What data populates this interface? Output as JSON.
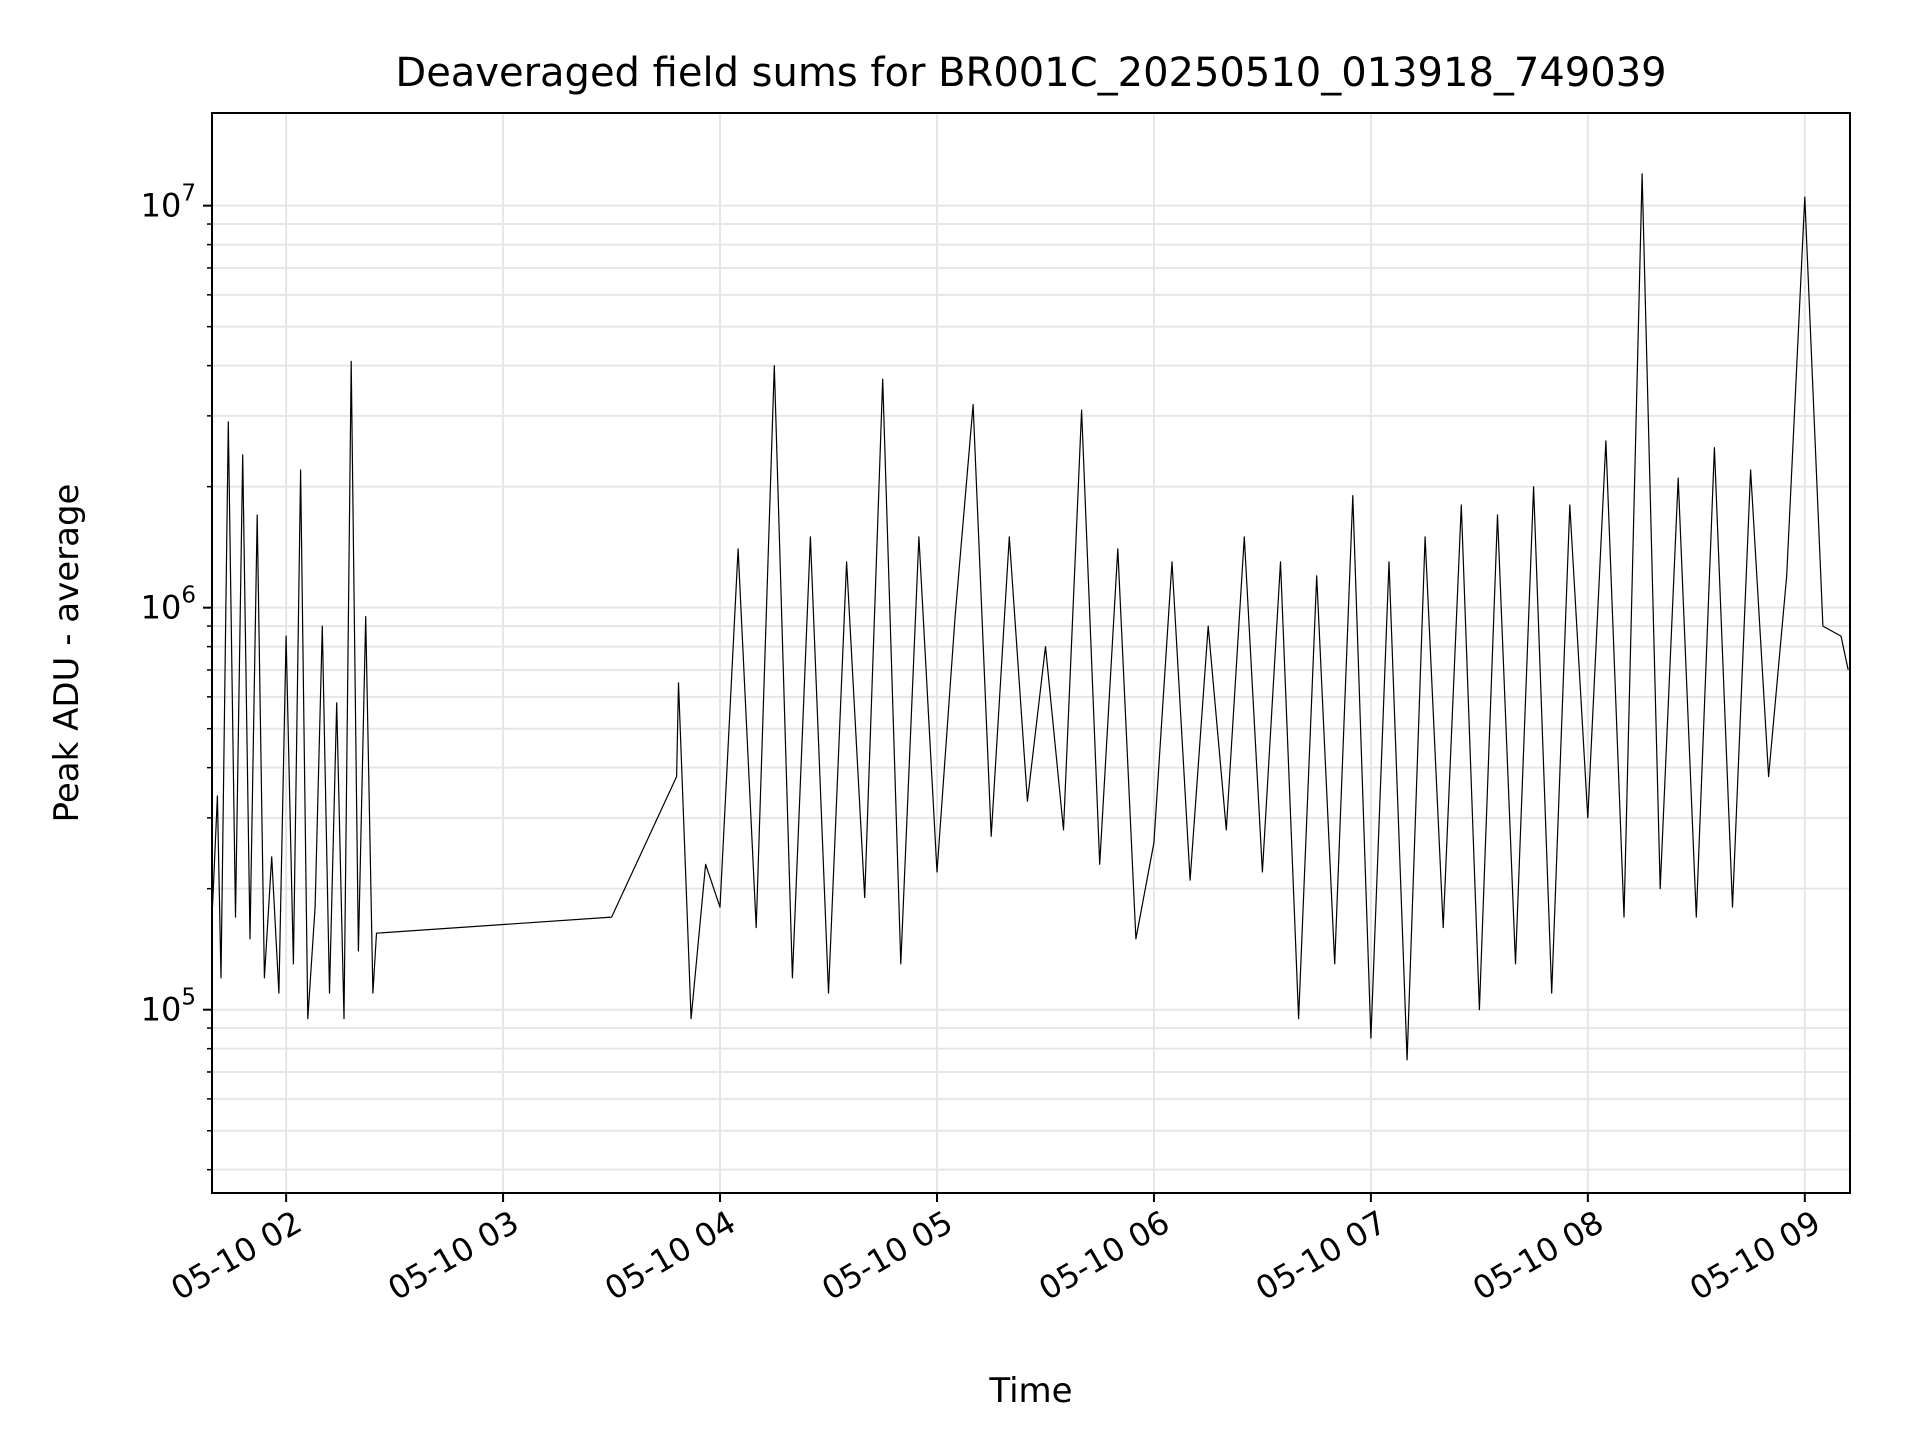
{
  "chart_data": {
    "type": "line",
    "title": "Deaveraged field sums for BR001C_20250510_013918_749039",
    "xlabel": "Time",
    "ylabel": "Peak ADU - average",
    "y_scale": "log",
    "ylim": [
      35000,
      17000000
    ],
    "xlim": [
      "2025-05-10 01:39:30",
      "2025-05-10 09:12:30"
    ],
    "x_ticks": [
      "05-10 02",
      "05-10 03",
      "05-10 04",
      "05-10 05",
      "05-10 06",
      "05-10 07",
      "05-10 08",
      "05-10 09"
    ],
    "x_tick_values": [
      "2025-05-10 02:00",
      "2025-05-10 03:00",
      "2025-05-10 04:00",
      "2025-05-10 05:00",
      "2025-05-10 06:00",
      "2025-05-10 07:00",
      "2025-05-10 08:00",
      "2025-05-10 09:00"
    ],
    "y_ticks": [
      {
        "base": "10",
        "exp": "5",
        "value": 100000
      },
      {
        "base": "10",
        "exp": "6",
        "value": 1000000
      },
      {
        "base": "10",
        "exp": "7",
        "value": 10000000
      }
    ],
    "grid": true,
    "line_color": "#000000",
    "series": [
      {
        "x": [
          "2025-05-10 01:39:39",
          "2025-05-10 01:41:00",
          "2025-05-10 01:42:00",
          "2025-05-10 01:44:00",
          "2025-05-10 01:46:00",
          "2025-05-10 01:48:00",
          "2025-05-10 01:50:00",
          "2025-05-10 01:52:00",
          "2025-05-10 01:54:00",
          "2025-05-10 01:56:00",
          "2025-05-10 01:58:00",
          "2025-05-10 02:00:00",
          "2025-05-10 02:02:00",
          "2025-05-10 02:04:00",
          "2025-05-10 02:06:00",
          "2025-05-10 02:08:00",
          "2025-05-10 02:10:00",
          "2025-05-10 02:12:00",
          "2025-05-10 02:14:00",
          "2025-05-10 02:16:00",
          "2025-05-10 02:18:00",
          "2025-05-10 02:20:00",
          "2025-05-10 02:22:00",
          "2025-05-10 02:24:00",
          "2025-05-10 02:25:00",
          "2025-05-10 03:30:00",
          "2025-05-10 03:48:00",
          "2025-05-10 03:48:30",
          "2025-05-10 03:52:00",
          "2025-05-10 03:56:00",
          "2025-05-10 04:00:00",
          "2025-05-10 04:05:00",
          "2025-05-10 04:10:00",
          "2025-05-10 04:15:00",
          "2025-05-10 04:20:00",
          "2025-05-10 04:25:00",
          "2025-05-10 04:30:00",
          "2025-05-10 04:35:00",
          "2025-05-10 04:40:00",
          "2025-05-10 04:45:00",
          "2025-05-10 04:50:00",
          "2025-05-10 04:55:00",
          "2025-05-10 05:00:00",
          "2025-05-10 05:05:00",
          "2025-05-10 05:10:00",
          "2025-05-10 05:15:00",
          "2025-05-10 05:20:00",
          "2025-05-10 05:25:00",
          "2025-05-10 05:30:00",
          "2025-05-10 05:35:00",
          "2025-05-10 05:40:00",
          "2025-05-10 05:45:00",
          "2025-05-10 05:50:00",
          "2025-05-10 05:55:00",
          "2025-05-10 06:00:00",
          "2025-05-10 06:05:00",
          "2025-05-10 06:10:00",
          "2025-05-10 06:15:00",
          "2025-05-10 06:20:00",
          "2025-05-10 06:25:00",
          "2025-05-10 06:30:00",
          "2025-05-10 06:35:00",
          "2025-05-10 06:40:00",
          "2025-05-10 06:45:00",
          "2025-05-10 06:50:00",
          "2025-05-10 06:55:00",
          "2025-05-10 07:00:00",
          "2025-05-10 07:05:00",
          "2025-05-10 07:10:00",
          "2025-05-10 07:15:00",
          "2025-05-10 07:20:00",
          "2025-05-10 07:25:00",
          "2025-05-10 07:30:00",
          "2025-05-10 07:35:00",
          "2025-05-10 07:40:00",
          "2025-05-10 07:45:00",
          "2025-05-10 07:50:00",
          "2025-05-10 07:55:00",
          "2025-05-10 08:00:00",
          "2025-05-10 08:05:00",
          "2025-05-10 08:10:00",
          "2025-05-10 08:15:00",
          "2025-05-10 08:20:00",
          "2025-05-10 08:25:00",
          "2025-05-10 08:30:00",
          "2025-05-10 08:35:00",
          "2025-05-10 08:40:00",
          "2025-05-10 08:45:00",
          "2025-05-10 08:50:00",
          "2025-05-10 08:55:00",
          "2025-05-10 09:00:00",
          "2025-05-10 09:05:00",
          "2025-05-10 09:10:00",
          "2025-05-10 09:12:00"
        ],
        "y": [
          180000,
          340000,
          120000,
          2900000,
          170000,
          2400000,
          150000,
          1700000,
          120000,
          240000,
          110000,
          850000,
          130000,
          2200000,
          95000,
          180000,
          900000,
          110000,
          580000,
          95000,
          4100000,
          140000,
          950000,
          110000,
          155000,
          170000,
          380000,
          650000,
          95000,
          230000,
          180000,
          1400000,
          160000,
          4000000,
          120000,
          1500000,
          110000,
          1300000,
          190000,
          3700000,
          130000,
          1500000,
          220000,
          950000,
          3200000,
          270000,
          1500000,
          330000,
          800000,
          280000,
          3100000,
          230000,
          1400000,
          150000,
          260000,
          1300000,
          210000,
          900000,
          280000,
          1500000,
          220000,
          1300000,
          95000,
          1200000,
          130000,
          1900000,
          85000,
          1300000,
          75000,
          1500000,
          160000,
          1800000,
          100000,
          1700000,
          130000,
          2000000,
          110000,
          1800000,
          300000,
          2600000,
          170000,
          12000000,
          200000,
          2100000,
          170000,
          2500000,
          180000,
          2200000,
          380000,
          1200000,
          10500000,
          900000,
          850000,
          700000
        ]
      }
    ]
  }
}
